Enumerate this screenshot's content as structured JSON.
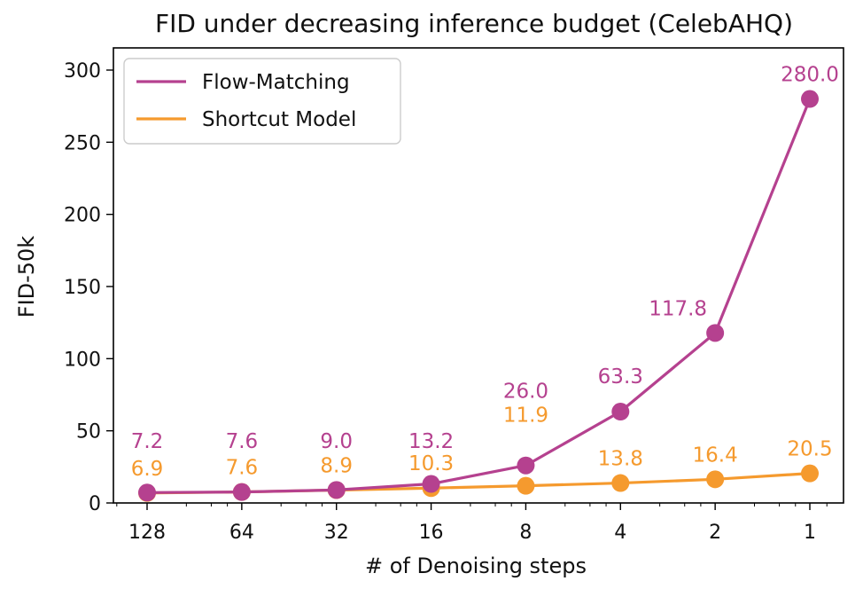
{
  "chart_data": {
    "type": "line",
    "title": "FID under decreasing inference budget (CelebAHQ)",
    "xlabel": "# of Denoising steps",
    "ylabel": "FID-50k",
    "categories": [
      "128",
      "64",
      "32",
      "16",
      "8",
      "4",
      "2",
      "1"
    ],
    "ylim": [
      0,
      310
    ],
    "yticks": [
      0,
      50,
      100,
      150,
      200,
      250,
      300
    ],
    "grid": false,
    "legend_position": "top-left",
    "series": [
      {
        "name": "Flow-Matching",
        "color": "#b5418f",
        "values": [
          7.2,
          7.6,
          9.0,
          13.2,
          26.0,
          63.3,
          117.8,
          280.0
        ],
        "labels": [
          "7.2",
          "7.6",
          "9.0",
          "13.2",
          "26.0",
          "63.3",
          "117.8",
          "280.0"
        ]
      },
      {
        "name": "Shortcut Model",
        "color": "#f59a2e",
        "values": [
          6.9,
          7.6,
          8.9,
          10.3,
          11.9,
          13.8,
          16.4,
          20.5
        ],
        "labels": [
          "6.9",
          "7.6",
          "8.9",
          "10.3",
          "11.9",
          "13.8",
          "16.4",
          "20.5"
        ]
      }
    ]
  }
}
